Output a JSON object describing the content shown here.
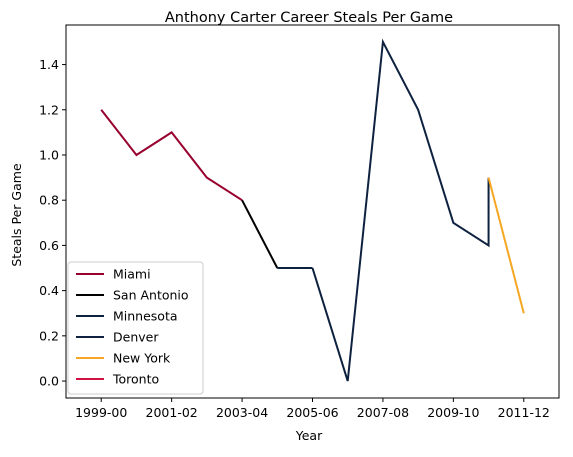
{
  "chart_data": {
    "type": "line",
    "title": "Anthony Carter Career Steals Per Game",
    "xlabel": "Year",
    "ylabel": "Steals Per Game",
    "x_ticks": [
      "1999-00",
      "2001-02",
      "2003-04",
      "2005-06",
      "2007-08",
      "2009-10",
      "2011-12"
    ],
    "y_ticks": [
      "0.0",
      "0.2",
      "0.4",
      "0.6",
      "0.8",
      "1.0",
      "1.2",
      "1.4"
    ],
    "y_tick_values": [
      0.0,
      0.2,
      0.4,
      0.6,
      0.8,
      1.0,
      1.2,
      1.4
    ],
    "x_range_seasons": [
      "1998-99",
      "2012-13"
    ],
    "ylim": [
      -0.075,
      1.575
    ],
    "grid": false,
    "legend_position": "lower-left",
    "series": [
      {
        "name": "Miami",
        "color": "#98002E",
        "x": [
          "1999-00",
          "2000-01",
          "2001-02",
          "2002-03",
          "2003-04"
        ],
        "y": [
          1.2,
          1.0,
          1.1,
          0.9,
          0.8
        ]
      },
      {
        "name": "San Antonio",
        "color": "#000000",
        "x": [
          "2003-04",
          "2004-05"
        ],
        "y": [
          0.8,
          0.5
        ]
      },
      {
        "name": "Minnesota",
        "color": "#0C2340",
        "x": [
          "2004-05",
          "2005-06"
        ],
        "y": [
          0.5,
          0.5
        ]
      },
      {
        "name": "Denver",
        "color": "#0E2240",
        "x": [
          "2005-06",
          "2006-07",
          "2007-08",
          "2008-09",
          "2009-10",
          "2010-11",
          "2010-11"
        ],
        "y": [
          0.5,
          0.0,
          1.5,
          1.2,
          0.7,
          0.6,
          0.9
        ]
      },
      {
        "name": "New York",
        "color": "#F5A623",
        "x": [
          "2010-11",
          "2011-12"
        ],
        "y": [
          0.9,
          0.3
        ]
      },
      {
        "name": "Toronto",
        "color": "#CE1141",
        "x": [],
        "y": []
      }
    ]
  }
}
